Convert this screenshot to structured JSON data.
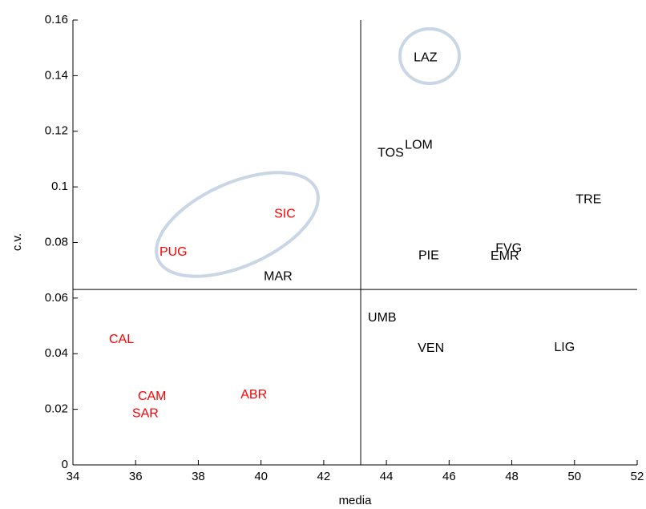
{
  "chart_data": {
    "type": "scatter",
    "x_label": "media",
    "y_label": "c.v.",
    "xlim": [
      34,
      52
    ],
    "xticks": [
      34,
      36,
      38,
      40,
      42,
      44,
      46,
      48,
      50,
      52
    ],
    "ylim": [
      0,
      0.16
    ],
    "yticks": [
      0,
      0.02,
      0.04,
      0.06,
      0.08,
      0.1,
      0.12,
      0.14,
      0.16
    ],
    "reference_lines": {
      "x": 43.18,
      "y": 0.0631
    },
    "points": [
      {
        "label": "LAZ",
        "x": 44.87,
        "y": 0.1464,
        "color": "#000000"
      },
      {
        "label": "LOM",
        "x": 44.59,
        "y": 0.115,
        "color": "#000000"
      },
      {
        "label": "TOS",
        "x": 43.72,
        "y": 0.112,
        "color": "#000000"
      },
      {
        "label": "TRE",
        "x": 50.04,
        "y": 0.0954,
        "color": "#000000"
      },
      {
        "label": "SIC",
        "x": 40.42,
        "y": 0.0902,
        "color": "#ff0000"
      },
      {
        "label": "PUG",
        "x": 36.76,
        "y": 0.0764,
        "color": "#ff0000"
      },
      {
        "label": "FVG",
        "x": 47.48,
        "y": 0.0778,
        "color": "#000000"
      },
      {
        "label": "EMR",
        "x": 47.32,
        "y": 0.075,
        "color": "#000000"
      },
      {
        "label": "PIE",
        "x": 45.02,
        "y": 0.0752,
        "color": "#000000"
      },
      {
        "label": "MAR",
        "x": 40.09,
        "y": 0.0677,
        "color": "#000000"
      },
      {
        "label": "UMB",
        "x": 43.41,
        "y": 0.0528,
        "color": "#000000"
      },
      {
        "label": "CAL",
        "x": 35.15,
        "y": 0.045,
        "color": "#ff0000"
      },
      {
        "label": "VEN",
        "x": 45.0,
        "y": 0.0418,
        "color": "#000000"
      },
      {
        "label": "LIG",
        "x": 49.35,
        "y": 0.0421,
        "color": "#000000"
      },
      {
        "label": "ABR",
        "x": 39.35,
        "y": 0.0251,
        "color": "#ff0000"
      },
      {
        "label": "CAM",
        "x": 36.07,
        "y": 0.0245,
        "color": "#ff0000"
      },
      {
        "label": "SAR",
        "x": 35.89,
        "y": 0.0184,
        "color": "#ff0000"
      }
    ]
  }
}
